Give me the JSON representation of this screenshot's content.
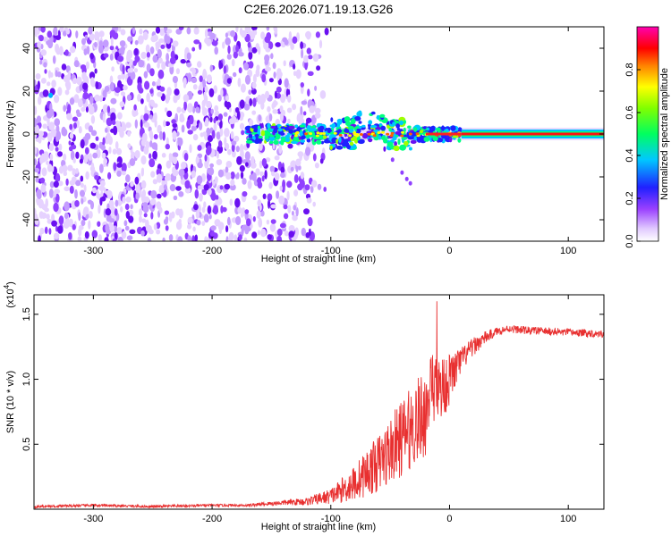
{
  "figure": {
    "title": "C2E6.2026.071.19.13.G26"
  },
  "chart_data": [
    {
      "type": "heatmap",
      "title": "C2E6.2026.071.19.13.G26",
      "xlabel": "Height of straight line (km)",
      "ylabel": "Frequency (Hz)",
      "xlim": [
        -350,
        130
      ],
      "ylim": [
        -50,
        50
      ],
      "xticks": [
        -300,
        -200,
        -100,
        0,
        100
      ],
      "yticks": [
        -40,
        -20,
        0,
        20,
        40
      ],
      "xtick_labels": [
        "-300",
        "-200",
        "-100",
        "0",
        "100"
      ],
      "ytick_labels": [
        "-40",
        "-20",
        "0",
        "20",
        "40"
      ],
      "colorbar": {
        "label": "Normalized spectral amplitude",
        "range": [
          0,
          1
        ],
        "ticks": [
          0.0,
          0.2,
          0.4,
          0.6,
          0.8
        ],
        "tick_labels": [
          "0.0",
          "0.2",
          "0.4",
          "0.6",
          "0.8"
        ],
        "colors": [
          "#ffffff",
          "#d9b3ff",
          "#8000ff",
          "#0000ff",
          "#00ccff",
          "#00ff80",
          "#80ff00",
          "#ffff00",
          "#ff8000",
          "#ff0000",
          "#ff00aa"
        ]
      },
      "description_regions": {
        "noise_region_x": [
          -350,
          -120
        ],
        "signal_line_x": [
          -170,
          130
        ],
        "signal_line_freq": 0
      }
    },
    {
      "type": "line",
      "title": "",
      "xlabel": "Height of straight line (km)",
      "ylabel": "SNR (10 * v/v)",
      "y_multiplier_label": "(x10",
      "y_multiplier_exp": "4",
      "y_multiplier_close": ")",
      "xlim": [
        -350,
        130
      ],
      "ylim": [
        0,
        1.65
      ],
      "xticks": [
        -300,
        -200,
        -100,
        0,
        100
      ],
      "yticks": [
        0.5,
        1.0,
        1.5
      ],
      "xtick_labels": [
        "-300",
        "-200",
        "-100",
        "0",
        "100"
      ],
      "ytick_labels": [
        "0.5",
        "1.0",
        "1.5"
      ],
      "color": "#e83030",
      "series": [
        {
          "name": "SNR",
          "x": [
            -350,
            -300,
            -250,
            -200,
            -170,
            -140,
            -120,
            -100,
            -90,
            -80,
            -70,
            -60,
            -50,
            -40,
            -30,
            -20,
            -15,
            -10,
            -5,
            0,
            10,
            20,
            30,
            40,
            50,
            60,
            80,
            100,
            130
          ],
          "values": [
            0.02,
            0.03,
            0.02,
            0.03,
            0.03,
            0.05,
            0.06,
            0.1,
            0.15,
            0.2,
            0.28,
            0.35,
            0.45,
            0.55,
            0.65,
            0.75,
            0.85,
            0.9,
            0.95,
            1.0,
            1.15,
            1.25,
            1.32,
            1.37,
            1.39,
            1.38,
            1.37,
            1.36,
            1.35
          ],
          "noise_amplitude": [
            0.01,
            0.01,
            0.01,
            0.01,
            0.01,
            0.02,
            0.03,
            0.06,
            0.1,
            0.14,
            0.18,
            0.22,
            0.26,
            0.3,
            0.32,
            0.35,
            0.35,
            0.3,
            0.25,
            0.2,
            0.1,
            0.07,
            0.05,
            0.03,
            0.03,
            0.03,
            0.03,
            0.03,
            0.03
          ]
        }
      ]
    }
  ]
}
